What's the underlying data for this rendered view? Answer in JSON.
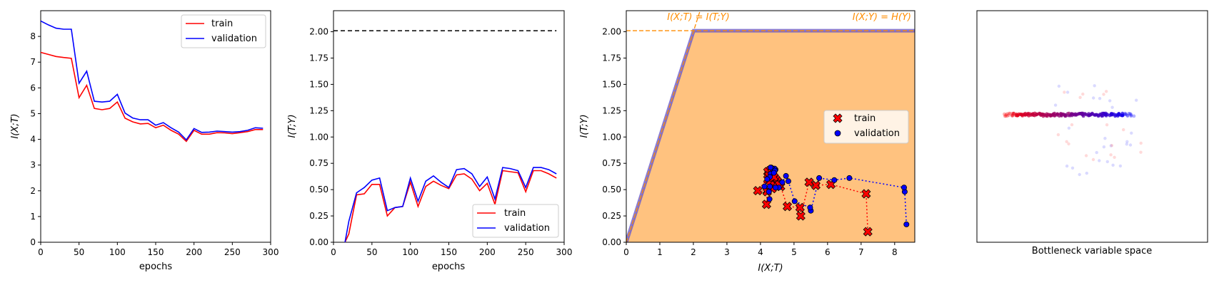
{
  "chart_data": [
    {
      "type": "line",
      "xlabel": "epochs",
      "ylabel": "I(X;T)",
      "xlim": [
        0,
        300
      ],
      "ylim": [
        0,
        9
      ],
      "xticks": [
        0,
        50,
        100,
        150,
        200,
        250,
        300
      ],
      "yticks": [
        0,
        1,
        2,
        3,
        4,
        5,
        6,
        7,
        8
      ],
      "legend_position": "top-right",
      "series": [
        {
          "name": "train",
          "color": "#ff0000",
          "x": [
            0,
            10,
            20,
            30,
            40,
            50,
            60,
            70,
            80,
            90,
            100,
            110,
            120,
            130,
            140,
            150,
            160,
            170,
            180,
            190,
            200,
            210,
            220,
            230,
            240,
            250,
            260,
            270,
            280,
            290
          ],
          "y": [
            7.38,
            7.3,
            7.22,
            7.18,
            7.15,
            5.62,
            6.1,
            5.2,
            5.15,
            5.2,
            5.45,
            4.82,
            4.68,
            4.6,
            4.62,
            4.45,
            4.55,
            4.35,
            4.2,
            3.92,
            4.35,
            4.2,
            4.2,
            4.26,
            4.25,
            4.22,
            4.26,
            4.3,
            4.38,
            4.38
          ]
        },
        {
          "name": "validation",
          "color": "#0000ff",
          "x": [
            0,
            10,
            20,
            30,
            40,
            50,
            60,
            70,
            80,
            90,
            100,
            110,
            120,
            130,
            140,
            150,
            160,
            170,
            180,
            190,
            200,
            210,
            220,
            230,
            240,
            250,
            260,
            270,
            280,
            290
          ],
          "y": [
            8.6,
            8.45,
            8.32,
            8.28,
            8.28,
            6.18,
            6.65,
            5.48,
            5.45,
            5.48,
            5.75,
            5.02,
            4.83,
            4.76,
            4.76,
            4.55,
            4.65,
            4.45,
            4.28,
            3.98,
            4.42,
            4.27,
            4.28,
            4.32,
            4.3,
            4.28,
            4.3,
            4.35,
            4.45,
            4.43
          ]
        }
      ]
    },
    {
      "type": "line",
      "xlabel": "epochs",
      "ylabel": "I(T;Y)",
      "xlim": [
        0,
        300
      ],
      "ylim": [
        0,
        2.2
      ],
      "xticks": [
        0,
        50,
        100,
        150,
        200,
        250,
        300
      ],
      "yticks": [
        0.0,
        0.25,
        0.5,
        0.75,
        1.0,
        1.25,
        1.5,
        1.75,
        2.0
      ],
      "ytick_labels": [
        "0.00",
        "0.25",
        "0.50",
        "0.75",
        "1.00",
        "1.25",
        "1.50",
        "1.75",
        "2.00"
      ],
      "reference_line": {
        "y": 2.01,
        "x_range": [
          0,
          290
        ],
        "style": "dashed",
        "color": "#000000"
      },
      "legend_position": "bottom-right",
      "series": [
        {
          "name": "train",
          "color": "#ff0000",
          "x": [
            15,
            20,
            30,
            40,
            50,
            60,
            70,
            80,
            90,
            100,
            110,
            120,
            130,
            140,
            150,
            160,
            170,
            180,
            190,
            200,
            210,
            220,
            230,
            240,
            250,
            260,
            270,
            280,
            290
          ],
          "y": [
            0.0,
            0.08,
            0.45,
            0.46,
            0.55,
            0.55,
            0.25,
            0.33,
            0.34,
            0.57,
            0.34,
            0.53,
            0.58,
            0.54,
            0.51,
            0.64,
            0.65,
            0.6,
            0.49,
            0.56,
            0.36,
            0.68,
            0.67,
            0.66,
            0.48,
            0.68,
            0.68,
            0.65,
            0.61
          ]
        },
        {
          "name": "validation",
          "color": "#0000ff",
          "x": [
            15,
            20,
            30,
            40,
            50,
            60,
            70,
            80,
            90,
            100,
            110,
            120,
            130,
            140,
            150,
            160,
            170,
            180,
            190,
            200,
            210,
            220,
            230,
            240,
            250,
            260,
            270,
            280,
            290
          ],
          "y": [
            0.0,
            0.2,
            0.47,
            0.52,
            0.59,
            0.61,
            0.3,
            0.33,
            0.34,
            0.61,
            0.39,
            0.58,
            0.63,
            0.57,
            0.52,
            0.69,
            0.7,
            0.65,
            0.53,
            0.62,
            0.41,
            0.71,
            0.7,
            0.68,
            0.52,
            0.71,
            0.71,
            0.69,
            0.65
          ]
        }
      ]
    },
    {
      "type": "scatter",
      "xlabel": "I(X;T)",
      "ylabel": "I(T;Y)",
      "xlim": [
        0,
        8.6
      ],
      "ylim": [
        0,
        2.2
      ],
      "xticks": [
        0,
        1,
        2,
        3,
        4,
        5,
        6,
        7,
        8
      ],
      "yticks": [
        0.0,
        0.25,
        0.5,
        0.75,
        1.0,
        1.25,
        1.5,
        1.75,
        2.0
      ],
      "ytick_labels": [
        "0.00",
        "0.25",
        "0.50",
        "0.75",
        "1.00",
        "1.25",
        "1.50",
        "1.75",
        "2.00"
      ],
      "annotations": [
        "I(X;T) = I(T;Y)",
        "I(X;Y) = H(Y)"
      ],
      "HY": 2.01,
      "region_color": "#ffc27f",
      "bound_color": "#6a5acd",
      "annotation_color": "#ff8c00",
      "legend_position": "center-right",
      "series": [
        {
          "name": "train",
          "marker": "x",
          "color": "#ff0000",
          "x": [
            7.2,
            7.15,
            6.1,
            5.65,
            5.45,
            5.2,
            5.18,
            4.8,
            4.6,
            4.5,
            4.45,
            4.35,
            4.3,
            4.25,
            4.2,
            4.18,
            4.4,
            4.55,
            4.28,
            4.22,
            4.2,
            3.92,
            4.35,
            4.22,
            4.25,
            4.3,
            4.38,
            4.4
          ],
          "y": [
            0.1,
            0.46,
            0.55,
            0.54,
            0.57,
            0.25,
            0.33,
            0.34,
            0.53,
            0.58,
            0.6,
            0.51,
            0.64,
            0.65,
            0.49,
            0.36,
            0.56,
            0.55,
            0.68,
            0.67,
            0.48,
            0.49,
            0.66,
            0.6,
            0.63,
            0.58,
            0.61,
            0.62
          ]
        },
        {
          "name": "validation",
          "marker": "o",
          "color": "#0000ff",
          "x": [
            8.35,
            8.3,
            8.28,
            6.65,
            6.2,
            5.75,
            5.5,
            5.48,
            5.02,
            4.83,
            4.76,
            4.65,
            4.55,
            4.45,
            4.42,
            4.3,
            4.28,
            4.28,
            4.27,
            4.32,
            4.35,
            4.43,
            4.45,
            4.3,
            4.2,
            4.12,
            4.25,
            4.4
          ],
          "y": [
            0.17,
            0.48,
            0.52,
            0.61,
            0.59,
            0.61,
            0.3,
            0.33,
            0.39,
            0.58,
            0.63,
            0.57,
            0.52,
            0.69,
            0.7,
            0.65,
            0.53,
            0.62,
            0.41,
            0.71,
            0.7,
            0.68,
            0.52,
            0.71,
            0.6,
            0.53,
            0.48,
            0.66
          ]
        }
      ]
    },
    {
      "type": "scatter",
      "xlabel": "Bottleneck variable space",
      "ylabel": "",
      "axes": "off",
      "colors": [
        "#ff0000",
        "#0000ff"
      ],
      "point_count": 170
    }
  ]
}
